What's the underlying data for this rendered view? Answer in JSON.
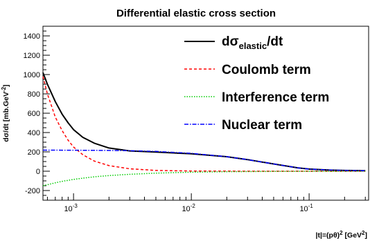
{
  "chart_data": {
    "type": "line",
    "title": "Differential elastic cross section",
    "xlabel": {
      "prefix": "|t|=(p",
      "theta": "θ",
      "suffix_a": ")",
      "sq": "2",
      "suffix_b": " [GeV",
      "sq2": "2",
      "suffix_c": "]"
    },
    "ylabel": {
      "prefix": "dσ/dt [mb.GeV",
      "sup": "-2",
      "suffix": "]"
    },
    "x_scale": "log",
    "xlim": [
      0.00055,
      0.32
    ],
    "ylim": [
      -300,
      1500
    ],
    "y_ticks": [
      -200,
      0,
      200,
      400,
      600,
      800,
      1000,
      1200,
      1400
    ],
    "y_tick_labels": [
      "-200",
      "0",
      "200",
      "400",
      "600",
      "800",
      "1000",
      "1200",
      "1400"
    ],
    "x_ticks": [
      0.001,
      0.01,
      0.1
    ],
    "x_tick_labels": [
      {
        "base": "10",
        "exp": "-3"
      },
      {
        "base": "10",
        "exp": "-2"
      },
      {
        "base": "10",
        "exp": "-1"
      }
    ],
    "grid": false,
    "legend_position": "top-right",
    "series": [
      {
        "name": {
          "pre": "dσ",
          "sub": "elastic",
          "post": "/dt"
        },
        "color": "#000000",
        "dash": "solid",
        "x": [
          0.00055,
          0.0006,
          0.0007,
          0.0008,
          0.0009,
          0.001,
          0.0012,
          0.0015,
          0.002,
          0.003,
          0.005,
          0.01,
          0.02,
          0.03,
          0.05,
          0.08,
          0.1,
          0.15,
          0.2,
          0.3
        ],
        "y": [
          1020,
          900,
          720,
          590,
          500,
          430,
          350,
          290,
          240,
          210,
          198,
          180,
          150,
          120,
          75,
          35,
          22,
          12,
          8,
          5
        ]
      },
      {
        "name": {
          "pre": "Coulomb term"
        },
        "color": "#ff0000",
        "dash": "dashed",
        "x": [
          0.00055,
          0.0006,
          0.0007,
          0.0008,
          0.0009,
          0.001,
          0.0012,
          0.0015,
          0.002,
          0.003,
          0.005,
          0.01,
          0.03,
          0.1,
          0.3
        ],
        "y": [
          980,
          800,
          560,
          420,
          320,
          250,
          170,
          105,
          58,
          25,
          8,
          2,
          0,
          0,
          0
        ]
      },
      {
        "name": {
          "pre": "Interference term"
        },
        "color": "#00cc00",
        "dash": "dotted",
        "x": [
          0.00055,
          0.0006,
          0.0007,
          0.0008,
          0.001,
          0.0012,
          0.0015,
          0.002,
          0.003,
          0.005,
          0.01,
          0.02,
          0.05,
          0.1,
          0.3
        ],
        "y": [
          -150,
          -140,
          -120,
          -105,
          -85,
          -72,
          -58,
          -45,
          -32,
          -20,
          -10,
          -5,
          -2,
          -1,
          0
        ]
      },
      {
        "name": {
          "pre": "Nuclear term"
        },
        "color": "#0000ff",
        "dash": "dashdot",
        "x": [
          0.00055,
          0.001,
          0.002,
          0.003,
          0.005,
          0.01,
          0.02,
          0.03,
          0.05,
          0.08,
          0.1,
          0.15,
          0.2,
          0.3
        ],
        "y": [
          218,
          217,
          215,
          212,
          205,
          185,
          150,
          120,
          75,
          35,
          22,
          12,
          8,
          5
        ]
      }
    ]
  }
}
